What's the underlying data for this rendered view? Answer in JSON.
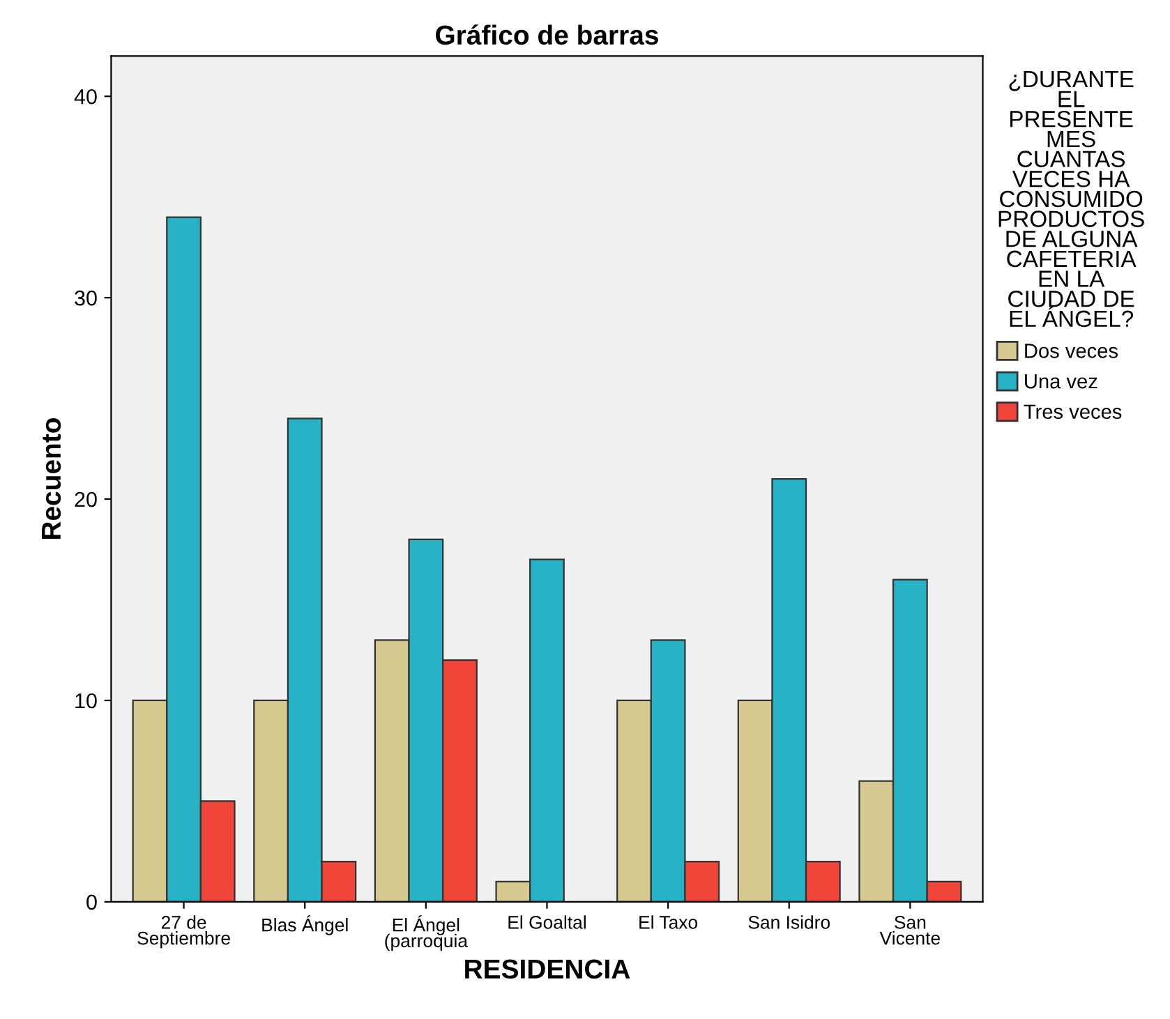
{
  "chart_data": {
    "type": "bar",
    "title": "Gráfico de barras",
    "xlabel": "RESIDENCIA",
    "ylabel": "Recuento",
    "legend_title": "¿DURANTE EL PRESENTE MES CUANTAS VECES HA CONSUMIDO PRODUCTOS DE ALGUNA CAFETERIA EN LA CIUDAD DE EL ÁNGEL?",
    "categories": [
      "27 de\nSeptiembre",
      "Blas Ángel",
      "El Ángel\n(parroquia",
      "El Goaltal",
      "El Taxo",
      "San Isidro",
      "San\nVicente"
    ],
    "series": [
      {
        "name": "Dos veces",
        "color": "#d5c98f",
        "values": [
          10,
          10,
          13,
          1,
          10,
          10,
          6
        ]
      },
      {
        "name": "Una vez",
        "color": "#27b2c6",
        "values": [
          34,
          24,
          18,
          17,
          13,
          21,
          16
        ]
      },
      {
        "name": "Tres veces",
        "color": "#f1453a",
        "values": [
          5,
          2,
          12,
          null,
          2,
          2,
          1
        ]
      }
    ],
    "ylim": [
      0,
      42
    ],
    "yticks": [
      0,
      10,
      20,
      30,
      40
    ],
    "grid": false,
    "legend": "right"
  }
}
